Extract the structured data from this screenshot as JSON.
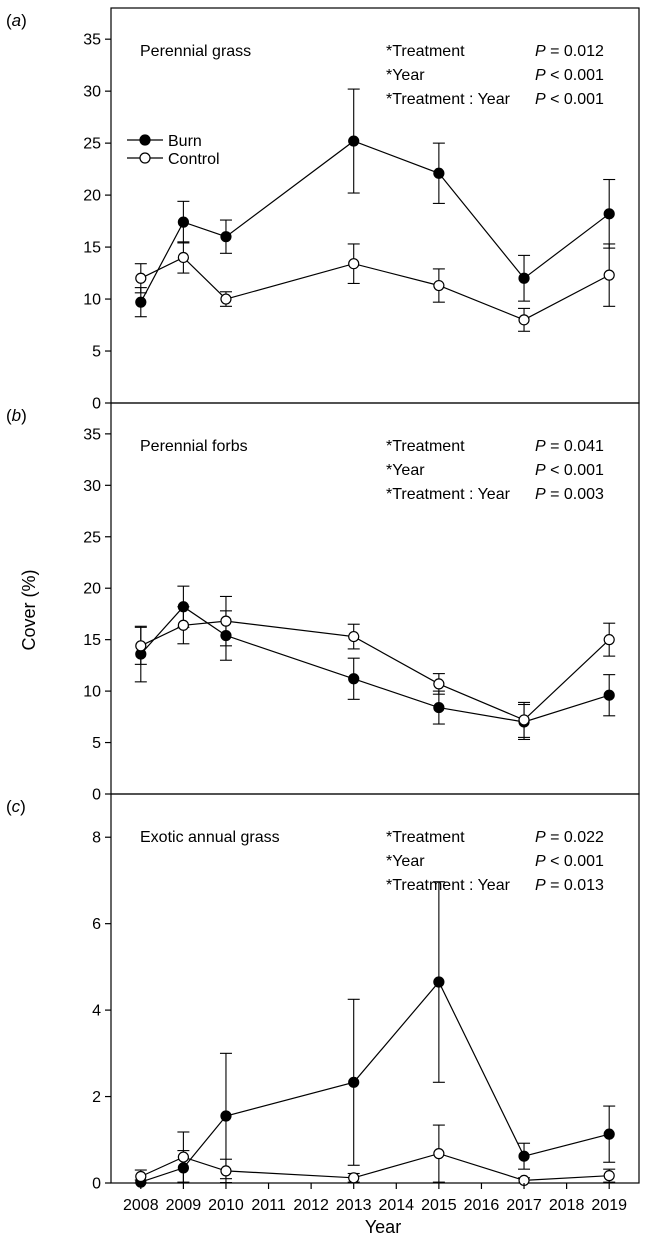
{
  "chart_data": {
    "type": "line",
    "xlabel": "Year",
    "ylabel": "Cover (%)",
    "x_ticks": [
      2008,
      2009,
      2010,
      2011,
      2012,
      2013,
      2014,
      2015,
      2016,
      2017,
      2018,
      2019
    ],
    "x_range": [
      2007.3,
      2019.7
    ],
    "legend": {
      "placement": "upper-left of panel a",
      "entries": [
        {
          "label": "Burn",
          "marker": "filled circle"
        },
        {
          "label": "Control",
          "marker": "open circle"
        }
      ]
    },
    "panels": [
      {
        "letter": "(a)",
        "title": "Perennial grass",
        "ylim": [
          0,
          38
        ],
        "y_ticks": [
          0,
          5,
          10,
          15,
          20,
          25,
          30,
          35
        ],
        "stats": [
          {
            "term": "*Treatment",
            "p": "P = 0.012"
          },
          {
            "term": "*Year",
            "p": "P < 0.001"
          },
          {
            "term": "*Treatment : Year",
            "p": "P < 0.001"
          }
        ],
        "series": [
          {
            "name": "Burn",
            "filled": true,
            "x": [
              2008,
              2009,
              2010,
              2013,
              2015,
              2017,
              2019
            ],
            "y": [
              9.7,
              17.4,
              16.0,
              25.2,
              22.1,
              12.0,
              18.2
            ],
            "err": [
              1.4,
              2.0,
              1.6,
              5.0,
              2.9,
              2.2,
              3.3
            ]
          },
          {
            "name": "Control",
            "filled": false,
            "x": [
              2008,
              2009,
              2010,
              2013,
              2015,
              2017,
              2019
            ],
            "y": [
              12.0,
              14.0,
              10.0,
              13.4,
              11.3,
              8.0,
              12.3
            ],
            "err": [
              1.4,
              1.5,
              0.7,
              1.9,
              1.6,
              1.1,
              3.0
            ]
          }
        ]
      },
      {
        "letter": "(b)",
        "title": "Perennial forbs",
        "ylim": [
          0,
          38
        ],
        "y_ticks": [
          0,
          5,
          10,
          15,
          20,
          25,
          30,
          35
        ],
        "stats": [
          {
            "term": "*Treatment",
            "p": "P = 0.041"
          },
          {
            "term": "*Year",
            "p": "P < 0.001"
          },
          {
            "term": "*Treatment : Year",
            "p": "P = 0.003"
          }
        ],
        "series": [
          {
            "name": "Burn",
            "filled": true,
            "x": [
              2008,
              2009,
              2010,
              2013,
              2015,
              2017,
              2019
            ],
            "y": [
              13.6,
              18.2,
              15.4,
              11.2,
              8.4,
              7.0,
              9.6
            ],
            "err": [
              2.7,
              2.0,
              2.4,
              2.0,
              1.6,
              1.7,
              2.0
            ]
          },
          {
            "name": "Control",
            "filled": false,
            "x": [
              2008,
              2009,
              2010,
              2013,
              2015,
              2017,
              2019
            ],
            "y": [
              14.4,
              16.4,
              16.8,
              15.3,
              10.7,
              7.2,
              15.0
            ],
            "err": [
              1.8,
              1.8,
              2.4,
              1.2,
              1.0,
              1.7,
              1.6
            ]
          }
        ]
      },
      {
        "letter": "(c)",
        "title": "Exotic annual grass",
        "ylim": [
          0,
          9
        ],
        "y_ticks": [
          0,
          2,
          4,
          6,
          8
        ],
        "stats": [
          {
            "term": "*Treatment",
            "p": "P = 0.022"
          },
          {
            "term": "*Year",
            "p": "P < 0.001"
          },
          {
            "term": "*Treatment : Year",
            "p": "P = 0.013"
          }
        ],
        "series": [
          {
            "name": "Burn",
            "filled": true,
            "x": [
              2008,
              2009,
              2010,
              2013,
              2015,
              2017,
              2019
            ],
            "y": [
              0.02,
              0.35,
              1.55,
              2.33,
              4.65,
              0.62,
              1.13
            ],
            "err": [
              0.05,
              0.4,
              1.45,
              1.92,
              2.32,
              0.3,
              0.65
            ]
          },
          {
            "name": "Control",
            "filled": false,
            "x": [
              2008,
              2009,
              2010,
              2013,
              2015,
              2017,
              2019
            ],
            "y": [
              0.15,
              0.6,
              0.28,
              0.12,
              0.68,
              0.06,
              0.17
            ],
            "err": [
              0.15,
              0.58,
              0.27,
              0.1,
              0.66,
              0.06,
              0.15
            ]
          }
        ]
      }
    ]
  }
}
